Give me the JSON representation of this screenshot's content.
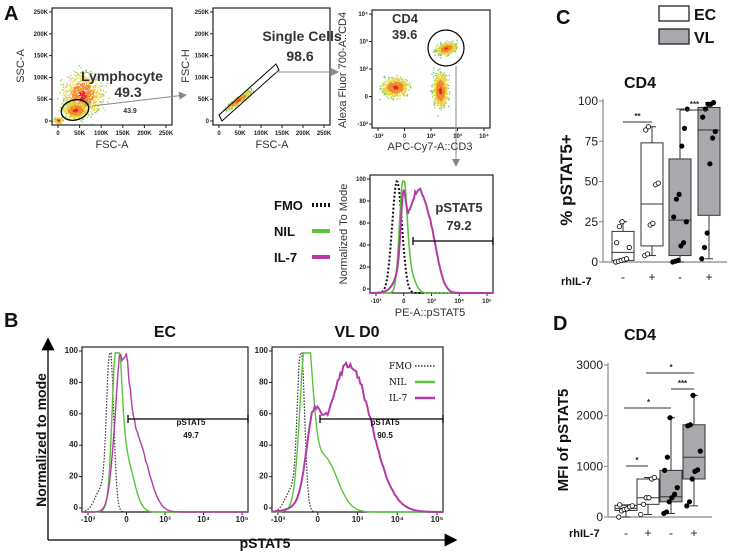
{
  "panels": {
    "A": {
      "label": "A",
      "scatter1": {
        "xlabel": "FSC-A",
        "ylabel": "SSC-A",
        "gate_name": "Lymphocyte",
        "gate_value": "49.3",
        "other_value": "43.9",
        "yticks": [
          "250K",
          "200K",
          "150K",
          "100K",
          "50K",
          "0"
        ],
        "xticks": [
          "0",
          "50K",
          "100K",
          "150K",
          "200K",
          "250K"
        ]
      },
      "scatter2": {
        "xlabel": "FSC-A",
        "ylabel": "FSC-H",
        "gate_name": "Single Cells",
        "gate_value": "98.6",
        "yticks": [
          "250K",
          "200K",
          "150K",
          "100K",
          "50K",
          "0"
        ],
        "xticks": [
          "0",
          "50K",
          "100K",
          "150K",
          "200K",
          "250K"
        ]
      },
      "scatter3": {
        "xlabel": "APC-Cy7-A::CD3",
        "ylabel": "Alexa Fluor 700-A::CD4",
        "gate_name": "CD4",
        "gate_value": "39.6",
        "yticks": [
          "10⁴",
          "10³",
          "10²",
          "0",
          "-10²"
        ],
        "xticks": [
          "-10²",
          "0",
          "10²",
          "10³",
          "10⁴"
        ]
      },
      "histogram": {
        "xlabel": "PE-A::pSTAT5",
        "ylabel": "Normalized To Mode",
        "gate_name": "pSTAT5",
        "gate_value": "79.2",
        "yticks": [
          "100",
          "80",
          "60",
          "40",
          "20",
          "0"
        ],
        "xticks": [
          "-10³",
          "0",
          "10³",
          "10⁴",
          "10⁵"
        ],
        "legend": [
          {
            "label": "FMO",
            "color": "#111111",
            "style": "dotted"
          },
          {
            "label": "NIL",
            "color": "#5cc43a",
            "style": "solid"
          },
          {
            "label": "IL-7",
            "color": "#b43ba6",
            "style": "solid"
          }
        ]
      }
    },
    "B": {
      "label": "B",
      "ylabel": "Normalized to mode",
      "xlabel": "pSTAT5",
      "yticks": [
        "100",
        "80",
        "60",
        "40",
        "20",
        "0"
      ],
      "xticks": [
        "-10³",
        "0",
        "10³",
        "10⁴",
        "10⁵"
      ],
      "plots": [
        {
          "title": "EC",
          "gate_name": "pSTAT5",
          "gate_value": "49.7"
        },
        {
          "title": "VL D0",
          "gate_name": "pSTAT5",
          "gate_value": "90.5"
        }
      ],
      "legend": [
        {
          "label": "FMO"
        },
        {
          "label": "NIL"
        },
        {
          "label": "IL-7"
        }
      ]
    }
  },
  "colors": {
    "ec_fill": "#ffffff",
    "vl_fill": "#a9a9ad",
    "nil": "#5cc43a",
    "il7": "#b43ba6"
  },
  "legend": {
    "ec": "EC",
    "vl": "VL"
  },
  "chart_data": [
    {
      "panel": "C",
      "type": "box",
      "title": "CD4",
      "ylabel": "% pSTAT5+",
      "xlabel": "rhIL-7",
      "ylim": [
        0,
        100
      ],
      "yticks": [
        "0",
        "25",
        "50",
        "75",
        "100"
      ],
      "categories": [
        "-",
        "+",
        "-",
        "+"
      ],
      "groups": [
        "EC",
        "EC",
        "VL",
        "VL"
      ],
      "boxes": [
        {
          "min": 0,
          "q1": 1,
          "median": 6,
          "q3": 19,
          "max": 25,
          "points": [
            0,
            0.5,
            1,
            1.5,
            2,
            9,
            12,
            22,
            25
          ]
        },
        {
          "min": 4,
          "q1": 10,
          "median": 36,
          "q3": 74,
          "max": 84,
          "points": [
            4,
            5,
            23,
            24,
            48,
            49,
            82,
            84
          ]
        },
        {
          "min": 0,
          "q1": 4,
          "median": 26,
          "q3": 64,
          "max": 95,
          "points": [
            0,
            0.5,
            1,
            10,
            12,
            25,
            28,
            39,
            42,
            72,
            83,
            95
          ]
        },
        {
          "min": 2,
          "q1": 29,
          "median": 82,
          "q3": 96,
          "max": 99,
          "points": [
            2,
            9,
            18,
            61,
            77,
            81,
            90,
            95,
            98,
            98,
            99
          ]
        }
      ],
      "significance": [
        {
          "from": 0,
          "to": 1,
          "label": "**"
        },
        {
          "from": 2,
          "to": 3,
          "label": "***"
        }
      ]
    },
    {
      "panel": "D",
      "type": "box",
      "title": "CD4",
      "ylabel": "MFI of pSTAT5",
      "xlabel": "rhIL-7",
      "ylim": [
        0,
        3000
      ],
      "yticks": [
        "0",
        "1000",
        "2000",
        "3000"
      ],
      "categories": [
        "-",
        "+",
        "-",
        "+"
      ],
      "groups": [
        "EC",
        "EC",
        "VL",
        "VL"
      ],
      "boxes": [
        {
          "min": 0,
          "q1": 130,
          "median": 170,
          "q3": 230,
          "max": 240,
          "points": [
            0,
            120,
            150,
            160,
            200,
            220,
            240
          ]
        },
        {
          "min": 50,
          "q1": 250,
          "median": 380,
          "q3": 750,
          "max": 780,
          "points": [
            50,
            250,
            380,
            380,
            750,
            780
          ]
        },
        {
          "min": 70,
          "q1": 300,
          "median": 400,
          "q3": 920,
          "max": 1960,
          "points": [
            70,
            100,
            300,
            380,
            450,
            580,
            920,
            1180,
            1960
          ]
        },
        {
          "min": 220,
          "q1": 750,
          "median": 1180,
          "q3": 1820,
          "max": 2400,
          "points": [
            220,
            300,
            750,
            900,
            930,
            1300,
            1800,
            1820,
            2400
          ]
        }
      ],
      "significance": [
        {
          "from": 0,
          "to": 1,
          "label": "*"
        },
        {
          "from": 0,
          "to": 2,
          "label": "*"
        },
        {
          "from": 2,
          "to": 3,
          "label": "***"
        },
        {
          "from": 1,
          "to": 3,
          "label": "*"
        }
      ]
    }
  ]
}
